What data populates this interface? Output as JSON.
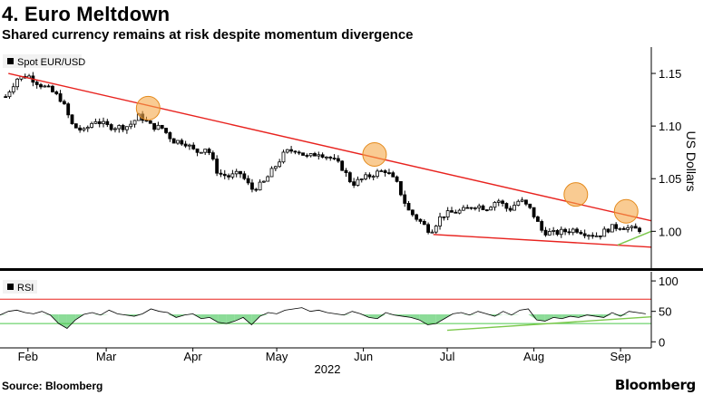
{
  "title": "4. Euro Meltdown",
  "subtitle": "Shared currency remains at risk despite momentum divergence",
  "source": "Source: Bloomberg",
  "brand": "Bloomberg",
  "colors": {
    "candle": "#000000",
    "resistance": "#e8231f",
    "support": "#e8231f",
    "rsi_trend": "#7cc84c",
    "highlight": "#f5a94a",
    "rsi_fill": "#6fd37e",
    "rsi_overbought": "#e8231f",
    "rsi_oversold": "#4cc94c"
  },
  "chart_data": [
    {
      "type": "candlestick",
      "title": "4. Euro Meltdown",
      "subtitle": "Shared currency remains at risk despite momentum divergence",
      "legend": "Spot EUR/USD",
      "ylabel": "US Dollars",
      "ylim": [
        0.965,
        1.175
      ],
      "yticks": [
        1.0,
        1.05,
        1.1,
        1.15
      ],
      "ytick_labels": [
        "1.00",
        "1.05",
        "1.10",
        "1.15"
      ],
      "xlabel": "2022",
      "xtick_labels": [
        "Feb",
        "Mar",
        "Apr",
        "May",
        "Jun",
        "Jul",
        "Aug",
        "Sep"
      ],
      "xticks_day": [
        32,
        60,
        91,
        121,
        152,
        182,
        213,
        244
      ],
      "x_range_day": [
        22,
        255
      ],
      "close_series": {
        "day": [
          24,
          28,
          32,
          36,
          40,
          44,
          48,
          52,
          56,
          60,
          64,
          68,
          72,
          76,
          80,
          84,
          88,
          92,
          96,
          100,
          104,
          108,
          112,
          116,
          120,
          124,
          128,
          132,
          136,
          140,
          144,
          148,
          152,
          156,
          160,
          164,
          168,
          172,
          176,
          180,
          184,
          188,
          192,
          196,
          200,
          204,
          208,
          212,
          216,
          220,
          224,
          228,
          232,
          236,
          240,
          244,
          248,
          252
        ],
        "value": [
          1.128,
          1.145,
          1.148,
          1.14,
          1.134,
          1.125,
          1.1,
          1.095,
          1.106,
          1.1,
          1.099,
          1.1,
          1.11,
          1.1,
          1.098,
          1.086,
          1.085,
          1.075,
          1.08,
          1.055,
          1.052,
          1.055,
          1.04,
          1.045,
          1.06,
          1.075,
          1.078,
          1.07,
          1.075,
          1.07,
          1.062,
          1.045,
          1.05,
          1.055,
          1.058,
          1.045,
          1.02,
          1.01,
          1.0,
          1.015,
          1.018,
          1.02,
          1.025,
          1.022,
          1.03,
          1.02,
          1.03,
          1.02,
          1.0,
          0.998,
          1.0,
          1.002,
          0.998,
          0.996,
          1.003,
          1.005,
          1.002,
          1.002
        ]
      },
      "trendlines": [
        {
          "name": "resistance",
          "from": [
            25,
            1.15
          ],
          "to": [
            255,
            1.01
          ]
        },
        {
          "name": "support",
          "from": [
            177,
            0.997
          ],
          "to": [
            255,
            0.985
          ]
        },
        {
          "name": "momentum-support",
          "from": [
            243,
            0.987
          ],
          "to": [
            255,
            1.0
          ]
        }
      ],
      "highlights": [
        {
          "day": 75,
          "value": 1.117
        },
        {
          "day": 156,
          "value": 1.073
        },
        {
          "day": 228,
          "value": 1.035
        },
        {
          "day": 246,
          "value": 1.019
        }
      ]
    },
    {
      "type": "line",
      "legend": "RSI",
      "ylim": [
        -10,
        115
      ],
      "yticks": [
        0,
        50,
        100
      ],
      "ytick_labels": [
        "0",
        "50",
        "100"
      ],
      "overbought": 70,
      "oversold": 30,
      "series": [
        {
          "name": "RSI",
          "day": [
            22,
            25,
            28,
            31,
            34,
            37,
            40,
            43,
            46,
            49,
            52,
            55,
            58,
            61,
            64,
            67,
            70,
            73,
            76,
            79,
            82,
            85,
            88,
            91,
            94,
            97,
            100,
            103,
            106,
            109,
            112,
            115,
            118,
            121,
            124,
            127,
            130,
            133,
            136,
            139,
            142,
            145,
            148,
            151,
            154,
            157,
            160,
            163,
            166,
            169,
            172,
            175,
            178,
            181,
            184,
            187,
            190,
            193,
            196,
            199,
            202,
            205,
            208,
            211,
            214,
            217,
            220,
            223,
            226,
            229,
            232,
            235,
            238,
            241,
            244,
            247,
            250,
            253
          ],
          "value": [
            44,
            50,
            52,
            48,
            46,
            50,
            44,
            30,
            22,
            36,
            45,
            48,
            44,
            52,
            46,
            44,
            42,
            46,
            54,
            50,
            48,
            40,
            44,
            46,
            38,
            40,
            32,
            30,
            34,
            40,
            28,
            42,
            48,
            46,
            52,
            54,
            56,
            50,
            52,
            48,
            46,
            44,
            50,
            46,
            40,
            38,
            48,
            44,
            42,
            40,
            36,
            28,
            30,
            38,
            46,
            48,
            44,
            50,
            46,
            42,
            50,
            44,
            52,
            54,
            36,
            34,
            40,
            38,
            42,
            40,
            44,
            42,
            40,
            48,
            42,
            50,
            48,
            46
          ]
        }
      ],
      "trendline": {
        "name": "rsi-divergence",
        "from": [
          182,
          19
        ],
        "to": [
          255,
          41
        ]
      }
    }
  ]
}
